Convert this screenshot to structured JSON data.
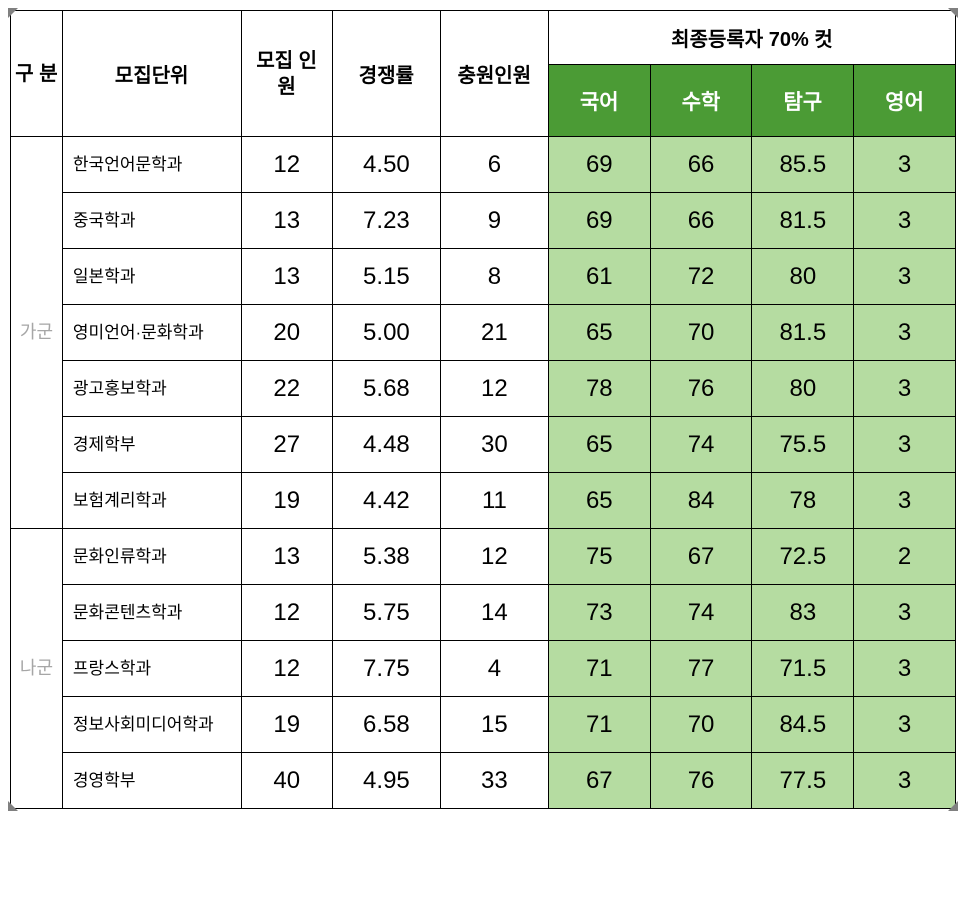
{
  "headers": {
    "category": "구\n분",
    "dept": "모집단위",
    "recruits": "모집\n인원",
    "ratio": "경쟁률",
    "fill": "충원인원",
    "cut_title": "최종등록자 70% 컷",
    "subjects": {
      "korean": "국어",
      "math": "수학",
      "inquiry": "탐구",
      "english": "영어"
    }
  },
  "colors": {
    "header_green_bg": "#4b9b35",
    "score_bg": "#b5dca1",
    "border": "#000000",
    "group_label": "#a6a6a6",
    "corner": "#808080"
  },
  "groups": [
    {
      "label": "가군",
      "rows": [
        {
          "dept": "한국언어문학과",
          "recruits": "12",
          "ratio": "4.50",
          "fill": "6",
          "korean": "69",
          "math": "66",
          "inquiry": "85.5",
          "english": "3"
        },
        {
          "dept": "중국학과",
          "recruits": "13",
          "ratio": "7.23",
          "fill": "9",
          "korean": "69",
          "math": "66",
          "inquiry": "81.5",
          "english": "3"
        },
        {
          "dept": "일본학과",
          "recruits": "13",
          "ratio": "5.15",
          "fill": "8",
          "korean": "61",
          "math": "72",
          "inquiry": "80",
          "english": "3"
        },
        {
          "dept": "영미언어·문화학과",
          "recruits": "20",
          "ratio": "5.00",
          "fill": "21",
          "korean": "65",
          "math": "70",
          "inquiry": "81.5",
          "english": "3"
        },
        {
          "dept": "광고홍보학과",
          "recruits": "22",
          "ratio": "5.68",
          "fill": "12",
          "korean": "78",
          "math": "76",
          "inquiry": "80",
          "english": "3"
        },
        {
          "dept": "경제학부",
          "recruits": "27",
          "ratio": "4.48",
          "fill": "30",
          "korean": "65",
          "math": "74",
          "inquiry": "75.5",
          "english": "3"
        },
        {
          "dept": "보험계리학과",
          "recruits": "19",
          "ratio": "4.42",
          "fill": "11",
          "korean": "65",
          "math": "84",
          "inquiry": "78",
          "english": "3"
        }
      ]
    },
    {
      "label": "나군",
      "rows": [
        {
          "dept": "문화인류학과",
          "recruits": "13",
          "ratio": "5.38",
          "fill": "12",
          "korean": "75",
          "math": "67",
          "inquiry": "72.5",
          "english": "2"
        },
        {
          "dept": "문화콘텐츠학과",
          "recruits": "12",
          "ratio": "5.75",
          "fill": "14",
          "korean": "73",
          "math": "74",
          "inquiry": "83",
          "english": "3"
        },
        {
          "dept": "프랑스학과",
          "recruits": "12",
          "ratio": "7.75",
          "fill": "4",
          "korean": "71",
          "math": "77",
          "inquiry": "71.5",
          "english": "3"
        },
        {
          "dept": "정보사회미디어학과",
          "recruits": "19",
          "ratio": "6.58",
          "fill": "15",
          "korean": "71",
          "math": "70",
          "inquiry": "84.5",
          "english": "3"
        },
        {
          "dept": "경영학부",
          "recruits": "40",
          "ratio": "4.95",
          "fill": "33",
          "korean": "67",
          "math": "76",
          "inquiry": "77.5",
          "english": "3"
        }
      ]
    }
  ]
}
